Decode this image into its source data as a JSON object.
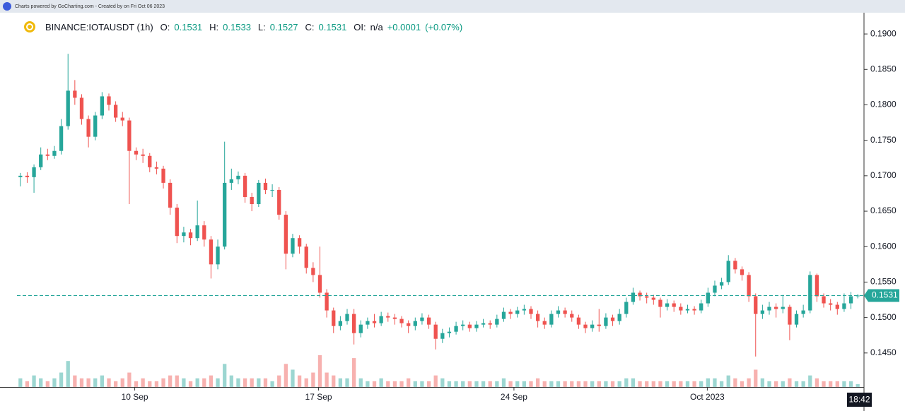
{
  "header": {
    "credit": "Charts powered by GoCharting.com - Created by  on Fri Oct 06 2023"
  },
  "chart_data": {
    "type": "candlestick",
    "symbol": "BINANCE:IOTAUSDT (1h)",
    "ohlc_labels": [
      "O:",
      "H:",
      "L:",
      "C:"
    ],
    "oi_label": "OI:",
    "oi_value": "n/a",
    "change": "+0.0001",
    "change_pct": "(+0.07%)",
    "time_label": "18:42",
    "up_color": "#26a69a",
    "down_color": "#ef5350",
    "xlim": [
      -0.5,
      123.5
    ],
    "xticks": [
      {
        "value": 16.8,
        "label": "10 Sep"
      },
      {
        "value": 43.8,
        "label": "17 Sep"
      },
      {
        "value": 72.5,
        "label": "24 Sep"
      },
      {
        "value": 100.9,
        "label": "Oct 2023"
      }
    ],
    "ylim": [
      0.1402,
      0.1926
    ],
    "yticks": [
      {
        "value": 0.145,
        "label": "0.1450"
      },
      {
        "value": 0.15,
        "label": "0.1500"
      },
      {
        "value": 0.155,
        "label": "0.1550"
      },
      {
        "value": 0.16,
        "label": "0.1600"
      },
      {
        "value": 0.165,
        "label": "0.1650"
      },
      {
        "value": 0.17,
        "label": "0.1700"
      },
      {
        "value": 0.175,
        "label": "0.1750"
      },
      {
        "value": 0.18,
        "label": "0.1800"
      },
      {
        "value": 0.185,
        "label": "0.1850"
      },
      {
        "value": 0.19,
        "label": "0.1900"
      }
    ],
    "open": [
      0.1698,
      0.17,
      0.1698,
      0.1712,
      0.173,
      0.1728,
      0.1735,
      0.177,
      0.182,
      0.181,
      0.178,
      0.1755,
      0.1785,
      0.1812,
      0.18,
      0.1782,
      0.1778,
      0.1735,
      0.173,
      0.1728,
      0.1712,
      0.171,
      0.169,
      0.1655,
      0.1615,
      0.162,
      0.1612,
      0.163,
      0.161,
      0.1575,
      0.16,
      0.169,
      0.1695,
      0.17,
      0.167,
      0.166,
      0.169,
      0.168,
      0.168,
      0.1645,
      0.159,
      0.1612,
      0.16,
      0.157,
      0.156,
      0.1535,
      0.151,
      0.1488,
      0.1495,
      0.1505,
      0.1478,
      0.149,
      0.1495,
      0.1492,
      0.1502,
      0.15,
      0.1498,
      0.1492,
      0.1488,
      0.1495,
      0.15,
      0.149,
      0.147,
      0.1478,
      0.148,
      0.1488,
      0.149,
      0.1485,
      0.149,
      0.1492,
      0.149,
      0.1498,
      0.1508,
      0.1505,
      0.151,
      0.1512,
      0.1505,
      0.1495,
      0.149,
      0.1505,
      0.151,
      0.1505,
      0.15,
      0.149,
      0.1485,
      0.149,
      0.1488,
      0.15,
      0.1495,
      0.1505,
      0.1522,
      0.1535,
      0.153,
      0.1528,
      0.1525,
      0.1515,
      0.152,
      0.1515,
      0.151,
      0.1512,
      0.151,
      0.152,
      0.1535,
      0.1545,
      0.155,
      0.158,
      0.1568,
      0.156,
      0.153,
      0.1505,
      0.151,
      0.1515,
      0.1512,
      0.1515,
      0.149,
      0.1505,
      0.151,
      0.156,
      0.153,
      0.152,
      0.1518,
      0.1512,
      0.152,
      0.1531
    ],
    "high": [
      0.1704,
      0.1705,
      0.1716,
      0.174,
      0.1738,
      0.1742,
      0.178,
      0.1872,
      0.1835,
      0.1815,
      0.1785,
      0.179,
      0.1818,
      0.1816,
      0.1805,
      0.179,
      0.1782,
      0.174,
      0.1738,
      0.1732,
      0.172,
      0.1714,
      0.1695,
      0.166,
      0.1628,
      0.1625,
      0.1665,
      0.1636,
      0.1615,
      0.161,
      0.1748,
      0.171,
      0.1706,
      0.1704,
      0.1676,
      0.1694,
      0.1696,
      0.1688,
      0.1684,
      0.165,
      0.1618,
      0.1616,
      0.1604,
      0.1578,
      0.16,
      0.154,
      0.1514,
      0.1502,
      0.1512,
      0.1512,
      0.1496,
      0.15,
      0.1505,
      0.1508,
      0.1507,
      0.1505,
      0.1502,
      0.1496,
      0.15,
      0.1506,
      0.1504,
      0.1494,
      0.1484,
      0.1486,
      0.1494,
      0.1496,
      0.1494,
      0.1495,
      0.1498,
      0.1496,
      0.1504,
      0.1514,
      0.1512,
      0.1515,
      0.1518,
      0.1516,
      0.151,
      0.15,
      0.151,
      0.1516,
      0.1514,
      0.151,
      0.1504,
      0.1494,
      0.1496,
      0.1512,
      0.1506,
      0.1504,
      0.1512,
      0.1528,
      0.1542,
      0.1538,
      0.1535,
      0.1532,
      0.1528,
      0.1526,
      0.1524,
      0.152,
      0.1518,
      0.1516,
      0.1525,
      0.1542,
      0.1552,
      0.1556,
      0.1588,
      0.1584,
      0.1572,
      0.1564,
      0.1534,
      0.1518,
      0.1522,
      0.152,
      0.1532,
      0.1518,
      0.151,
      0.1518,
      0.1565,
      0.1562,
      0.1534,
      0.1526,
      0.1522,
      0.1534,
      0.1536,
      0.1533
    ],
    "low": [
      0.1685,
      0.169,
      0.1676,
      0.1708,
      0.1722,
      0.1724,
      0.173,
      0.1765,
      0.18,
      0.1772,
      0.174,
      0.175,
      0.178,
      0.1792,
      0.1776,
      0.177,
      0.166,
      0.1722,
      0.1718,
      0.1705,
      0.1702,
      0.1682,
      0.1645,
      0.1605,
      0.1606,
      0.1602,
      0.1608,
      0.16,
      0.1555,
      0.1568,
      0.1596,
      0.168,
      0.1688,
      0.1662,
      0.165,
      0.1656,
      0.1674,
      0.167,
      0.1638,
      0.1568,
      0.1585,
      0.159,
      0.1562,
      0.155,
      0.1528,
      0.15,
      0.1478,
      0.1482,
      0.149,
      0.1462,
      0.1472,
      0.1484,
      0.1486,
      0.1488,
      0.1494,
      0.149,
      0.1486,
      0.1478,
      0.1482,
      0.149,
      0.1484,
      0.1455,
      0.1464,
      0.1472,
      0.1476,
      0.1482,
      0.148,
      0.148,
      0.1486,
      0.1484,
      0.1486,
      0.1494,
      0.1498,
      0.15,
      0.1504,
      0.1498,
      0.1486,
      0.1484,
      0.1486,
      0.15,
      0.15,
      0.1494,
      0.1484,
      0.1478,
      0.148,
      0.148,
      0.1484,
      0.1488,
      0.149,
      0.15,
      0.1518,
      0.1524,
      0.152,
      0.1518,
      0.15,
      0.151,
      0.1508,
      0.1504,
      0.1506,
      0.1504,
      0.1506,
      0.1515,
      0.153,
      0.154,
      0.1546,
      0.1562,
      0.1552,
      0.1522,
      0.1445,
      0.1498,
      0.1504,
      0.15,
      0.1506,
      0.1468,
      0.1486,
      0.15,
      0.1506,
      0.1522,
      0.1514,
      0.151,
      0.1504,
      0.1508,
      0.1512,
      0.1527
    ],
    "close": [
      0.17,
      0.1698,
      0.1712,
      0.173,
      0.1728,
      0.1735,
      0.177,
      0.182,
      0.181,
      0.178,
      0.1755,
      0.1785,
      0.1812,
      0.18,
      0.1782,
      0.1778,
      0.1735,
      0.173,
      0.1728,
      0.1712,
      0.171,
      0.169,
      0.1655,
      0.1615,
      0.162,
      0.1612,
      0.163,
      0.161,
      0.1575,
      0.16,
      0.169,
      0.1695,
      0.17,
      0.167,
      0.166,
      0.169,
      0.168,
      0.168,
      0.1645,
      0.159,
      0.1612,
      0.16,
      0.157,
      0.156,
      0.1535,
      0.151,
      0.1488,
      0.1495,
      0.1505,
      0.1478,
      0.149,
      0.1495,
      0.1492,
      0.1502,
      0.15,
      0.1498,
      0.1492,
      0.1488,
      0.1495,
      0.15,
      0.149,
      0.147,
      0.1478,
      0.148,
      0.1488,
      0.149,
      0.1485,
      0.149,
      0.1492,
      0.149,
      0.1498,
      0.1508,
      0.1505,
      0.151,
      0.1512,
      0.1505,
      0.1495,
      0.149,
      0.1505,
      0.151,
      0.1505,
      0.15,
      0.149,
      0.1485,
      0.149,
      0.1488,
      0.15,
      0.1495,
      0.1505,
      0.1522,
      0.1535,
      0.153,
      0.1528,
      0.1525,
      0.1515,
      0.152,
      0.1515,
      0.151,
      0.1512,
      0.151,
      0.152,
      0.1535,
      0.1545,
      0.155,
      0.158,
      0.1568,
      0.156,
      0.153,
      0.1505,
      0.151,
      0.1515,
      0.1512,
      0.1515,
      0.149,
      0.1505,
      0.151,
      0.156,
      0.153,
      0.152,
      0.1518,
      0.1512,
      0.152,
      0.153,
      0.1531
    ],
    "volume": [
      3,
      2,
      4,
      3,
      2,
      3,
      5,
      9,
      4,
      3,
      3,
      3,
      4,
      3,
      2,
      3,
      5,
      2,
      3,
      2,
      2,
      3,
      4,
      4,
      3,
      2,
      3,
      3,
      4,
      3,
      8,
      4,
      3,
      3,
      3,
      3,
      3,
      2,
      4,
      8,
      6,
      4,
      3,
      5,
      11,
      5,
      4,
      3,
      3,
      10,
      3,
      2,
      2,
      3,
      2,
      2,
      2,
      3,
      2,
      2,
      2,
      4,
      3,
      2,
      2,
      2,
      2,
      2,
      2,
      2,
      2,
      3,
      2,
      2,
      2,
      2,
      3,
      2,
      2,
      2,
      2,
      2,
      2,
      2,
      2,
      2,
      2,
      2,
      2,
      3,
      3,
      2,
      2,
      2,
      2,
      2,
      2,
      2,
      2,
      2,
      2,
      3,
      3,
      2,
      4,
      3,
      2,
      3,
      6,
      3,
      2,
      2,
      2,
      3,
      2,
      2,
      4,
      3,
      2,
      2,
      2,
      2,
      2,
      1
    ]
  }
}
